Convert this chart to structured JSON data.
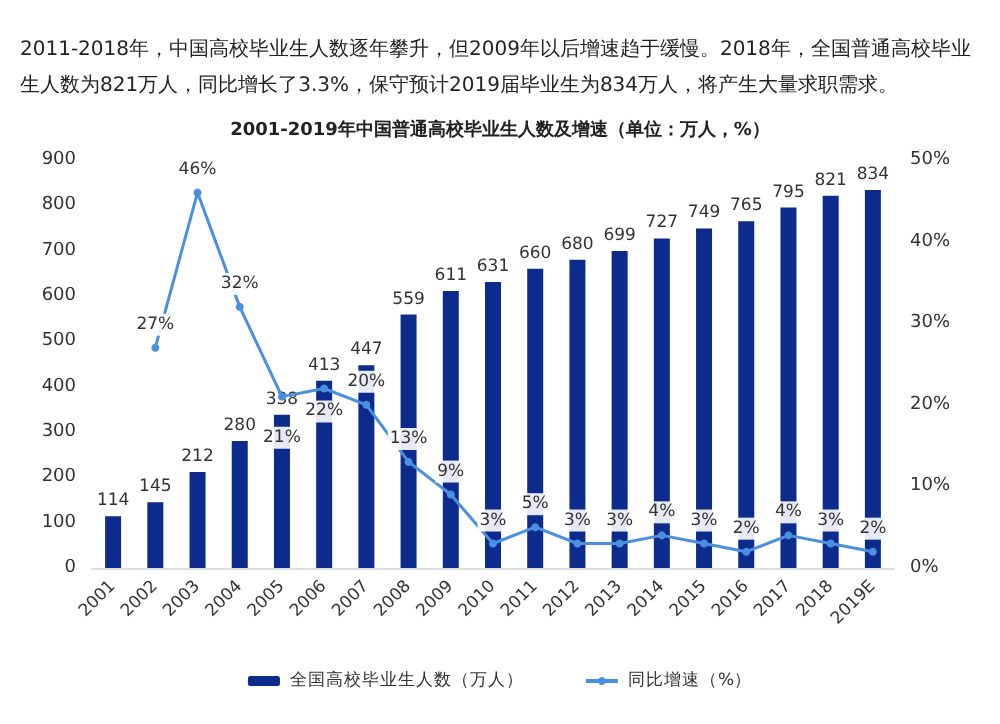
{
  "chart_data": {
    "type": "bar",
    "title": "2001-2019年中国普通高校毕业生人数及增速（单位：万人，%）",
    "annotations": [
      "2011-2018年，中国高校毕业生人数逐年攀升，但2009年以后增速趋于缓慢。2018年，全国普通高校毕业生人数为821万人，同比增长了3.3%，保守预计2019届毕业生为834万人，将产生大量求职需求。"
    ],
    "categories": [
      "2001",
      "2002",
      "2003",
      "2004",
      "2005",
      "2006",
      "2007",
      "2008",
      "2009",
      "2010",
      "2011",
      "2012",
      "2013",
      "2014",
      "2015",
      "2016",
      "2017",
      "2018",
      "2019E"
    ],
    "series": [
      {
        "name": "全国高校毕业生人数（万人）",
        "color": "#0d2b8c",
        "values": [
          114,
          145,
          212,
          280,
          338,
          413,
          447,
          559,
          611,
          631,
          660,
          680,
          699,
          727,
          749,
          765,
          795,
          821,
          834
        ]
      },
      {
        "name": "同比增速（%）",
        "type": "line",
        "axis": "y2",
        "color": "#4a8fe0",
        "marker": "circle",
        "values": [
          null,
          27,
          46,
          32,
          21,
          22,
          20,
          13,
          9,
          3,
          5,
          3,
          3,
          4,
          3,
          2,
          4,
          3,
          2
        ],
        "value_labels": [
          null,
          "27%",
          "46%",
          "32%",
          "21%",
          "22%",
          "20%",
          "13%",
          "9%",
          "3%",
          "5%",
          "3%",
          "3%",
          "4%",
          "3%",
          "2%",
          "4%",
          "3%",
          "2%"
        ]
      }
    ],
    "ylim": [
      0,
      900
    ],
    "yticks": [
      0,
      100,
      200,
      300,
      400,
      500,
      600,
      700,
      800,
      900
    ],
    "y2lim": [
      0,
      50
    ],
    "y2ticks": [
      {
        "value": 0,
        "label": "0%"
      },
      {
        "value": 10,
        "label": "10%"
      },
      {
        "value": 20,
        "label": "20%"
      },
      {
        "value": 30,
        "label": "30%"
      },
      {
        "value": 40,
        "label": "40%"
      },
      {
        "value": 50,
        "label": "50%"
      }
    ],
    "data_labels": true,
    "grid": false,
    "legend": "bottom"
  }
}
